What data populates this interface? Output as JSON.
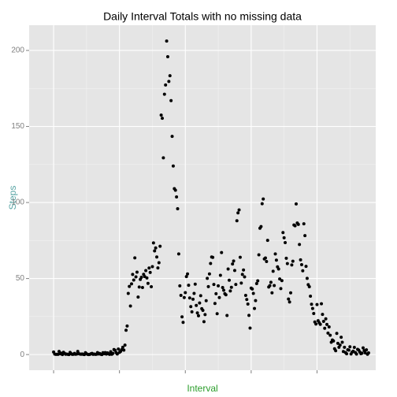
{
  "chart_data": {
    "type": "scatter",
    "title": "Daily Interval Totals with no missing data",
    "x_label": "Interval",
    "y_label": "Steps",
    "x_label_color": "#2a9d2a",
    "y_label_color": "#5aa5a5",
    "color": "#000000",
    "grid": true,
    "xlim": [
      -22.3,
      293.5
    ],
    "xticks": [
      0,
      60,
      120,
      180,
      240
    ],
    "ylim": [
      -10.3,
      216.6
    ],
    "yticks": [
      0,
      50,
      100,
      150,
      200
    ],
    "values": [
      1.7,
      0.3,
      0.1,
      0.2,
      0.1,
      2.1,
      0.5,
      0.9,
      0,
      1.5,
      0.8,
      0.2,
      0.3,
      0.1,
      0,
      1.4,
      0.6,
      0.1,
      0.2,
      0.8,
      0.2,
      0.3,
      2.1,
      0.6,
      0.3,
      0.2,
      0.4,
      0.1,
      0,
      1.2,
      0.5,
      0.1,
      0,
      0.1,
      0.5,
      0.8,
      0.1,
      0.3,
      0.1,
      0.2,
      1.3,
      0.4,
      0.7,
      0.2,
      0,
      1.2,
      0.6,
      1.3,
      0.3,
      1.1,
      0.5,
      0.1,
      1.9,
      0.2,
      0.8,
      3.3,
      2.8,
      1.2,
      0.4,
      3.6,
      1.4,
      2.1,
      3.2,
      4.8,
      2.9,
      6.2,
      16.0,
      18.8,
      40.2,
      44.8,
      31.9,
      46.5,
      52.7,
      49.0,
      63.6,
      51.1,
      54.2,
      37.8,
      44.4,
      49.4,
      50.8,
      44.1,
      52.8,
      51.3,
      55.2,
      50.4,
      46.8,
      56.9,
      54.0,
      44.6,
      57.8,
      73.4,
      68.2,
      70.1,
      64.2,
      57.0,
      60.4,
      71.2,
      157.5,
      155.4,
      129.4,
      171.2,
      177.3,
      206.2,
      195.9,
      179.6,
      183.4,
      167.0,
      143.5,
      124.0,
      109.1,
      108.1,
      103.7,
      95.9,
      66.2,
      45.2,
      38.9,
      24.8,
      21.2,
      37.5,
      40.7,
      51.3,
      53.0,
      45.6,
      37.2,
      31.5,
      28.1,
      36.4,
      40.2,
      46.3,
      32.3,
      27.4,
      25.5,
      33.9,
      38.7,
      30.2,
      29.1,
      21.6,
      26.3,
      35.4,
      50.1,
      44.7,
      53.0,
      59.9,
      64.2,
      63.9,
      46.1,
      33.6,
      40.0,
      26.9,
      45.2,
      37.5,
      52.1,
      67.1,
      44.1,
      42.3,
      40.0,
      39.3,
      25.7,
      56.3,
      48.9,
      41.8,
      44.2,
      59.6,
      61.5,
      55.3,
      46.1,
      88.0,
      93.2,
      95.1,
      64.0,
      47.0,
      52.7,
      55.6,
      51.1,
      38.9,
      36.2,
      33.2,
      25.8,
      17.4,
      43.7,
      43.1,
      40.2,
      30.3,
      35.5,
      46.7,
      48.5,
      65.6,
      83.1,
      84.2,
      99.2,
      102.3,
      62.9,
      63.5,
      61.2,
      75.1,
      44.4,
      45.3,
      47.5,
      40.6,
      54.8,
      45.4,
      66.2,
      62.1,
      57.7,
      56.3,
      49.7,
      43.4,
      48.6,
      80.2,
      76.8,
      73.6,
      63.3,
      59.8,
      36.5,
      34.6,
      40.6,
      58.9,
      61.4,
      85.2,
      84.7,
      99.1,
      86.5,
      85.6,
      72.4,
      62.3,
      59.1,
      55.1,
      86.0,
      78.2,
      58.0,
      50.1,
      46.0,
      44.6,
      38.4,
      33.1,
      30.3,
      27.0,
      21.4,
      20.1,
      32.9,
      22.3,
      20.9,
      19.9,
      33.4,
      26.4,
      21.8,
      17.3,
      23.5,
      19.8,
      14.1,
      18.2,
      12.7,
      8.1,
      9.6,
      8.9,
      3.8,
      2.5,
      13.9,
      7.4,
      4.8,
      6.2,
      11.4,
      8.1,
      2.0,
      4.8,
      1.3,
      0.5,
      3.2,
      2.9,
      5.1,
      0.4,
      1.6,
      2.2,
      4.7,
      1.3,
      0.3,
      3.4,
      2.9,
      1.7,
      0.6,
      0.9,
      4.4,
      2.6,
      1.1,
      3.1,
      0.2,
      1.1
    ]
  }
}
